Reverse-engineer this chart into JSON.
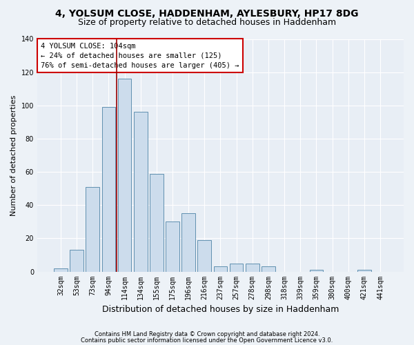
{
  "title1": "4, YOLSUM CLOSE, HADDENHAM, AYLESBURY, HP17 8DG",
  "title2": "Size of property relative to detached houses in Haddenham",
  "xlabel": "Distribution of detached houses by size in Haddenham",
  "ylabel": "Number of detached properties",
  "categories": [
    "32sqm",
    "53sqm",
    "73sqm",
    "94sqm",
    "114sqm",
    "134sqm",
    "155sqm",
    "175sqm",
    "196sqm",
    "216sqm",
    "237sqm",
    "257sqm",
    "278sqm",
    "298sqm",
    "318sqm",
    "339sqm",
    "359sqm",
    "380sqm",
    "400sqm",
    "421sqm",
    "441sqm"
  ],
  "values": [
    2,
    13,
    51,
    99,
    116,
    96,
    59,
    30,
    35,
    19,
    3,
    5,
    5,
    3,
    0,
    0,
    1,
    0,
    0,
    1,
    0
  ],
  "bar_color": "#ccdcec",
  "bar_edge_color": "#6090b0",
  "vline_x_index": 3.5,
  "vline_color": "#990000",
  "annotation_text": "4 YOLSUM CLOSE: 104sqm\n← 24% of detached houses are smaller (125)\n76% of semi-detached houses are larger (405) →",
  "annotation_box_color": "#ffffff",
  "annotation_box_edge": "#cc0000",
  "footer1": "Contains HM Land Registry data © Crown copyright and database right 2024.",
  "footer2": "Contains public sector information licensed under the Open Government Licence v3.0.",
  "bg_color": "#edf2f7",
  "plot_bg_color": "#e8eef5",
  "ylim": [
    0,
    140
  ],
  "yticks": [
    0,
    20,
    40,
    60,
    80,
    100,
    120,
    140
  ],
  "title1_fontsize": 10,
  "title2_fontsize": 9,
  "ylabel_fontsize": 8,
  "xlabel_fontsize": 9,
  "tick_fontsize": 7,
  "annot_fontsize": 7.5,
  "footer_fontsize": 6
}
